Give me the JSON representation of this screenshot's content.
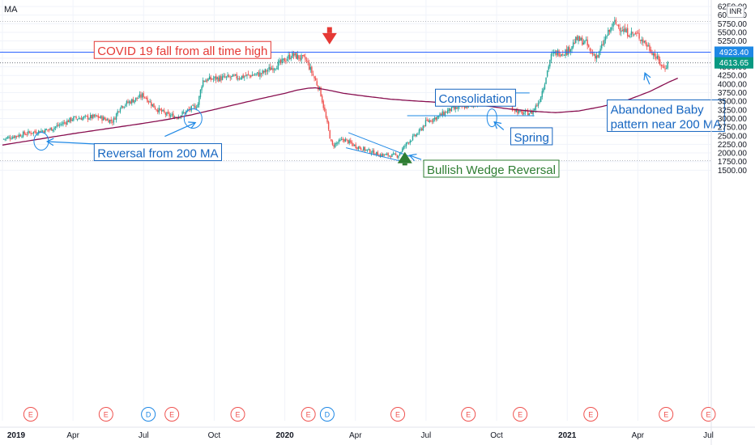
{
  "indicator_label": "MA",
  "currency_badge": "INR",
  "chart_data": {
    "type": "candlestick",
    "y_axis": {
      "ticks": [
        1500,
        1750,
        2000,
        2250,
        2500,
        2750,
        3000,
        3250,
        3500,
        3750,
        4000,
        4250,
        4500,
        4750,
        5000,
        5250,
        5500,
        5750,
        6000,
        6250
      ],
      "top_tick_text": "6250.00",
      "ylim": [
        1430,
        6290
      ]
    },
    "x_axis": {
      "ticks": [
        {
          "label": "2019",
          "month": 0,
          "bold": true
        },
        {
          "label": "Apr",
          "month": 3
        },
        {
          "label": "Jul",
          "month": 6
        },
        {
          "label": "Oct",
          "month": 9
        },
        {
          "label": "2020",
          "month": 12,
          "bold": true
        },
        {
          "label": "Apr",
          "month": 15
        },
        {
          "label": "Jul",
          "month": 18
        },
        {
          "label": "Oct",
          "month": 21
        },
        {
          "label": "2021",
          "month": 24,
          "bold": true
        },
        {
          "label": "Apr",
          "month": 27
        },
        {
          "label": "Jul",
          "month": 30
        }
      ]
    },
    "price_series": [
      [
        0,
        2400
      ],
      [
        1,
        2570
      ],
      [
        2,
        2680
      ],
      [
        3,
        3000
      ],
      [
        4,
        3050
      ],
      [
        4.7,
        2920
      ],
      [
        5,
        3350
      ],
      [
        6,
        3680
      ],
      [
        6.5,
        3300
      ],
      [
        7,
        3100
      ],
      [
        7.4,
        3050
      ],
      [
        7.8,
        3200
      ],
      [
        8.3,
        3400
      ],
      [
        8.5,
        4100
      ],
      [
        9,
        4160
      ],
      [
        10,
        4200
      ],
      [
        11,
        4300
      ],
      [
        11.8,
        4600
      ],
      [
        12.3,
        4850
      ],
      [
        12.9,
        4700
      ],
      [
        13.5,
        3800
      ],
      [
        14.0,
        2200
      ],
      [
        14.5,
        2400
      ],
      [
        15,
        2200
      ],
      [
        16,
        1950
      ],
      [
        16.8,
        1920
      ],
      [
        17.2,
        2300
      ],
      [
        17.7,
        2600
      ],
      [
        18,
        2900
      ],
      [
        18.5,
        3050
      ],
      [
        19,
        3250
      ],
      [
        20,
        3400
      ],
      [
        20.7,
        3580
      ],
      [
        21.2,
        3550
      ],
      [
        21.7,
        3300
      ],
      [
        22.0,
        3150
      ],
      [
        22.5,
        3180
      ],
      [
        22.8,
        3500
      ],
      [
        23,
        3950
      ],
      [
        23.3,
        4800
      ],
      [
        23.5,
        4900
      ],
      [
        24,
        4950
      ],
      [
        24.4,
        5300
      ],
      [
        24.8,
        5200
      ],
      [
        25,
        4900
      ],
      [
        25.3,
        4800
      ],
      [
        25.6,
        5300
      ],
      [
        26,
        5780
      ],
      [
        26.5,
        5500
      ],
      [
        27,
        5420
      ],
      [
        27.3,
        5200
      ],
      [
        27.6,
        4950
      ],
      [
        27.9,
        4650
      ],
      [
        28.1,
        4450
      ],
      [
        28.3,
        4620
      ]
    ],
    "ma200_series": [
      [
        0,
        2230
      ],
      [
        1,
        2340
      ],
      [
        2,
        2450
      ],
      [
        3,
        2560
      ],
      [
        4,
        2660
      ],
      [
        5,
        2760
      ],
      [
        6,
        2860
      ],
      [
        7,
        2970
      ],
      [
        8,
        3100
      ],
      [
        9,
        3260
      ],
      [
        10,
        3420
      ],
      [
        11,
        3580
      ],
      [
        12,
        3730
      ],
      [
        12.5,
        3820
      ],
      [
        13,
        3880
      ],
      [
        13.3,
        3890
      ],
      [
        13.8,
        3830
      ],
      [
        14.5,
        3730
      ],
      [
        15.5,
        3640
      ],
      [
        16.5,
        3560
      ],
      [
        17.5,
        3510
      ],
      [
        18.5,
        3470
      ],
      [
        19.5,
        3420
      ],
      [
        20.5,
        3370
      ],
      [
        21.5,
        3280
      ],
      [
        22.5,
        3210
      ],
      [
        23.5,
        3170
      ],
      [
        24.5,
        3220
      ],
      [
        25.5,
        3350
      ],
      [
        26.5,
        3520
      ],
      [
        27.5,
        3780
      ],
      [
        28.3,
        4050
      ],
      [
        28.8,
        4200
      ]
    ],
    "horizontal_lines": [
      {
        "name": "all-time-high-line",
        "y": 4923.4,
        "label": "4923.40",
        "color": "#2962ff"
      },
      {
        "name": "last-price-line",
        "y": 4613.65,
        "label": "4613.65",
        "color": "#5d606b",
        "dashed": true
      }
    ],
    "price_labels": [
      {
        "name": "level-label",
        "value": "4923.40",
        "color": "#1e88e5",
        "y": 4923.4
      },
      {
        "name": "last-price-label",
        "value": "4613.65",
        "color": "#089981",
        "y": 4613.65
      }
    ],
    "event_markers": [
      {
        "type": "E",
        "month": 1.2
      },
      {
        "type": "E",
        "month": 4.4
      },
      {
        "type": "D",
        "month": 6.2
      },
      {
        "type": "E",
        "month": 7.2
      },
      {
        "type": "E",
        "month": 10.0
      },
      {
        "type": "E",
        "month": 13.0
      },
      {
        "type": "D",
        "month": 13.8
      },
      {
        "type": "E",
        "month": 16.8
      },
      {
        "type": "E",
        "month": 19.8
      },
      {
        "type": "E",
        "month": 22.0
      },
      {
        "type": "E",
        "month": 25.0
      },
      {
        "type": "E",
        "month": 28.2
      },
      {
        "type": "E",
        "month": 30.0
      }
    ],
    "annotations": [
      {
        "name": "covid-fall-label",
        "text": "COVID 19 fall from all time high",
        "color": "#e53935",
        "month": 3.9,
        "y": 5235
      },
      {
        "name": "reversal-200ma-label",
        "text": "Reversal from 200 MA",
        "color": "#1565c0",
        "month": 3.9,
        "y": 2270
      },
      {
        "name": "bullish-wedge-label",
        "text": "Bullish Wedge Reversal",
        "color": "#2e7d32",
        "month": 17.9,
        "y": 1790
      },
      {
        "name": "consolidation-label",
        "text": "Consolidation",
        "color": "#1565c0",
        "month": 18.4,
        "y": 3850
      },
      {
        "name": "spring-label",
        "text": "Spring",
        "color": "#1565c0",
        "month": 21.6,
        "y": 2730
      },
      {
        "name": "abandoned-baby-label",
        "text": [
          "Abandoned Baby",
          "pattern near 200 MA"
        ],
        "color": "#1565c0",
        "month": 25.7,
        "y": 3540
      }
    ],
    "grid": true,
    "colors": {
      "up": "#26a69a",
      "down": "#ef5350",
      "ma": "#880e4f",
      "blue": "#1e88e5",
      "red": "#e53935",
      "green": "#2e7d32"
    }
  }
}
